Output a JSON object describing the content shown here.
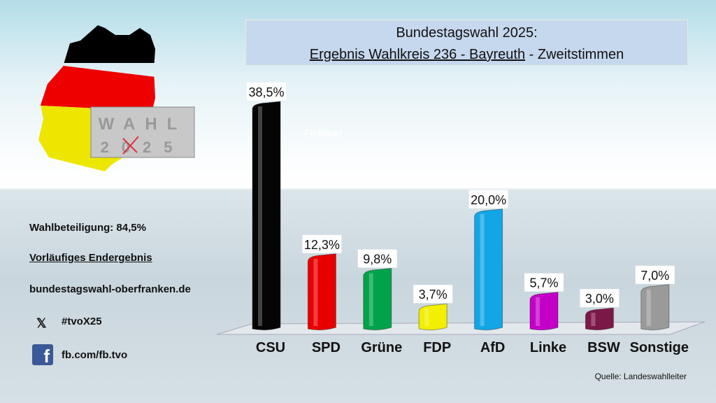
{
  "title": {
    "line1": "Bundestagswahl 2025:",
    "line2_underlined": "Ergebnis Wahlkreis 236 - Bayreuth",
    "line2_rest": " - Zweitstimmen"
  },
  "logo": {
    "top": "WAHL",
    "bottom": "2025"
  },
  "info": {
    "turnout": "Wahlbeteiligung: 84,5%",
    "status": "Vorläufiges Endergebnis",
    "website": "bundestagswahl-oberfranken.de",
    "x_handle": "#tvoX25",
    "facebook": "fb.com/fb.tvo"
  },
  "icons": [
    "x-logo-icon",
    "facebook-icon"
  ],
  "watermark": "Fichtner",
  "source": "Quelle: Landeswahlleiter",
  "chart_data": {
    "type": "bar",
    "categories": [
      "CSU",
      "SPD",
      "Grüne",
      "FDP",
      "AfD",
      "Linke",
      "BSW",
      "Sonstige"
    ],
    "values": [
      38.5,
      12.3,
      9.8,
      3.7,
      20.0,
      5.7,
      3.0,
      7.0
    ],
    "labels": [
      "38,5%",
      "12,3%",
      "9,8%",
      "3,7%",
      "20,0%",
      "5,7%",
      "3,0%",
      "7,0%"
    ],
    "colors": [
      "#050505",
      "#e80000",
      "#00a34a",
      "#f2ef00",
      "#12a6e6",
      "#c400c8",
      "#7c1848",
      "#9a9a9a"
    ],
    "unit": "%",
    "ylim": [
      0,
      40
    ],
    "grid": false,
    "legend": "none"
  }
}
